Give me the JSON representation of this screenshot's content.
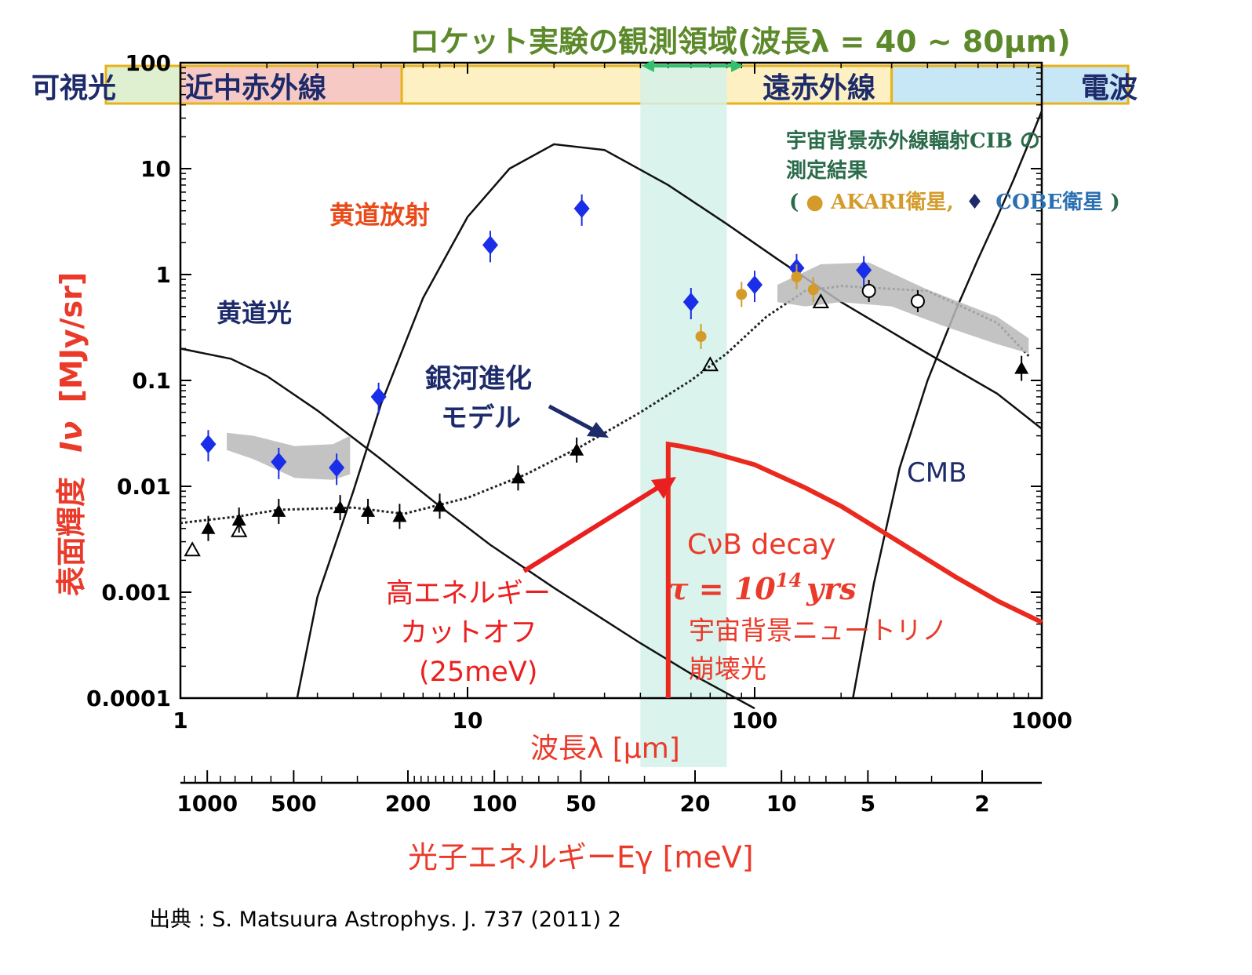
{
  "chart_data": {
    "type": "scatter",
    "title": "ロケット実験の観測領域(波長λ = 40 ~ 80μm)",
    "xlabel": "波長λ [μm]",
    "ylabel": "表面輝度",
    "ylabel_symbol": "Iν",
    "ylabel_unit": "[MJy/sr]",
    "x2label": "光子エネルギーEγ [meV]",
    "xscale": "log",
    "yscale": "log",
    "xlim": [
      1,
      1000
    ],
    "ylim": [
      0.0001,
      100
    ],
    "x_ticks": [
      "1",
      "10",
      "100",
      "1000"
    ],
    "y_ticks": [
      "0.0001",
      "0.001",
      "0.01",
      "0.1",
      "1",
      "10",
      "100"
    ],
    "x2_ticks": [
      "1000",
      "500",
      "200",
      "100",
      "50",
      "20",
      "10",
      "5",
      "2"
    ],
    "x2_tick_wavelengths": [
      1.24,
      2.48,
      6.2,
      12.4,
      24.8,
      62,
      124,
      248,
      620
    ],
    "bands": [
      {
        "label": "可視光",
        "from": 0.55,
        "to": 1.0,
        "color": "#dff0d0"
      },
      {
        "label": "近中赤外線",
        "from": 1.0,
        "to": 5.9,
        "color": "#f7c9c4"
      },
      {
        "label": "遠赤外線",
        "from": 5.9,
        "to": 300,
        "color": "#fdf0c2"
      },
      {
        "label": "電波",
        "from": 300,
        "to": 2000,
        "color": "#c7e6f6"
      }
    ],
    "rocket_band": {
      "from": 40,
      "to": 80,
      "color": "#d4f1ea"
    },
    "annotations": {
      "zodiacal_light": "黄道光",
      "zodiacal_emission": "黄道放射",
      "galaxy_model_line1": "銀河進化",
      "galaxy_model_line2": "モデル",
      "cmb": "CMB",
      "cib_line1": "宇宙背景赤外線輻射CIB の",
      "cib_line2": "測定結果",
      "cib_line3_open": "(",
      "cib_akari": "● AKARI衛星,",
      "cib_diamond": "♦",
      "cib_cobe": "COBE衛星",
      "cib_line3_close": ")",
      "cvb_decay": "CνB decay",
      "tau": "τ = 10",
      "tau_exp": "14",
      "tau_unit": "yrs",
      "neutrino_line1": "宇宙背景ニュートリノ",
      "neutrino_line2": "崩壊光",
      "cutoff_line1": "高エネルギー",
      "cutoff_line2": "カットオフ",
      "cutoff_line3": "(25meV)"
    },
    "series": [
      {
        "name": "COBE衛星",
        "marker": "diamond",
        "color": "#1a2de8",
        "x": [
          1.25,
          2.2,
          3.5,
          4.9,
          12,
          25,
          60,
          100,
          140,
          240
        ],
        "y": [
          0.025,
          0.017,
          0.015,
          0.07,
          1.9,
          4.2,
          0.55,
          0.8,
          1.15,
          1.1
        ]
      },
      {
        "name": "AKARI衛星",
        "marker": "circle",
        "color": "#d49b2a",
        "x": [
          65,
          90,
          140,
          160
        ],
        "y": [
          0.26,
          0.65,
          0.95,
          0.72
        ]
      },
      {
        "marker": "triangle",
        "color": "#000000",
        "x": [
          1.25,
          1.6,
          2.2,
          3.6,
          4.5,
          5.8,
          8,
          15,
          24,
          850
        ],
        "y": [
          0.004,
          0.0048,
          0.0058,
          0.0063,
          0.0058,
          0.0052,
          0.0065,
          0.012,
          0.022,
          0.13
        ]
      },
      {
        "marker": "triangle-open",
        "color": "#000000",
        "x": [
          1.1,
          1.6,
          70,
          170
        ],
        "y": [
          0.0025,
          0.0038,
          0.14,
          0.55
        ]
      },
      {
        "marker": "circle-open",
        "color": "#000000",
        "x": [
          250,
          370
        ],
        "y": [
          0.7,
          0.56
        ]
      },
      {
        "name": "CνB decay",
        "color": "#ea2a1f",
        "x": [
          50,
          55,
          70,
          100,
          150,
          200,
          300,
          500,
          700,
          1000
        ],
        "y": [
          0.025,
          0.024,
          0.021,
          0.016,
          0.0097,
          0.0065,
          0.0033,
          0.0014,
          0.00083,
          0.00052
        ]
      }
    ]
  },
  "source": "出典 : S. Matsuura Astrophys. J. 737 (2011) 2"
}
